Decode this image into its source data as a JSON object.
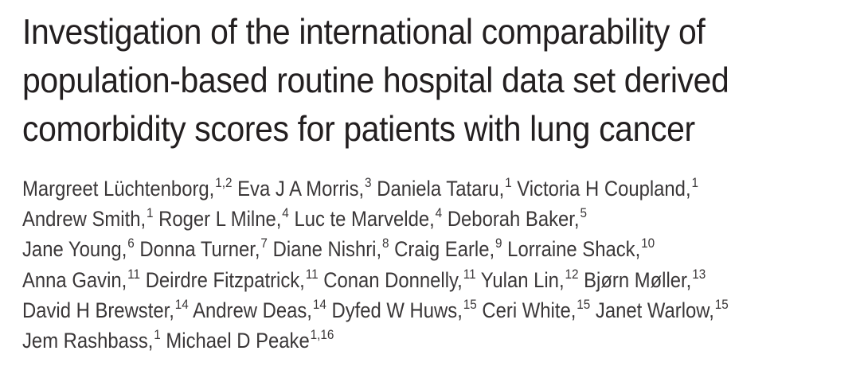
{
  "title_lines": [
    "Investigation of the international comparability of",
    "population-based routine hospital data set derived",
    "comorbidity scores for patients with lung cancer"
  ],
  "author_lines": [
    [
      {
        "name": "Margreet Lüchtenborg,",
        "sup": "1,2"
      },
      {
        "name": "Eva J A Morris,",
        "sup": "3"
      },
      {
        "name": "Daniela Tataru,",
        "sup": "1"
      },
      {
        "name": "Victoria H Coupland,",
        "sup": "1"
      }
    ],
    [
      {
        "name": "Andrew Smith,",
        "sup": "1"
      },
      {
        "name": "Roger L Milne,",
        "sup": "4"
      },
      {
        "name": "Luc te Marvelde,",
        "sup": "4"
      },
      {
        "name": "Deborah Baker,",
        "sup": "5"
      }
    ],
    [
      {
        "name": "Jane Young,",
        "sup": "6"
      },
      {
        "name": "Donna Turner,",
        "sup": "7"
      },
      {
        "name": "Diane Nishri,",
        "sup": "8"
      },
      {
        "name": "Craig Earle,",
        "sup": "9"
      },
      {
        "name": "Lorraine Shack,",
        "sup": "10"
      }
    ],
    [
      {
        "name": "Anna Gavin,",
        "sup": "11"
      },
      {
        "name": "Deirdre Fitzpatrick,",
        "sup": "11"
      },
      {
        "name": "Conan Donnelly,",
        "sup": "11"
      },
      {
        "name": "Yulan Lin,",
        "sup": "12"
      },
      {
        "name": "Bjørn Møller,",
        "sup": "13"
      }
    ],
    [
      {
        "name": "David H Brewster,",
        "sup": "14"
      },
      {
        "name": "Andrew Deas,",
        "sup": "14"
      },
      {
        "name": "Dyfed W Huws,",
        "sup": "15"
      },
      {
        "name": "Ceri White,",
        "sup": "15"
      },
      {
        "name": "Janet Warlow,",
        "sup": "15"
      }
    ],
    [
      {
        "name": "Jem Rashbass,",
        "sup": "1"
      },
      {
        "name": "Michael D Peake",
        "sup": "1,16"
      }
    ]
  ]
}
